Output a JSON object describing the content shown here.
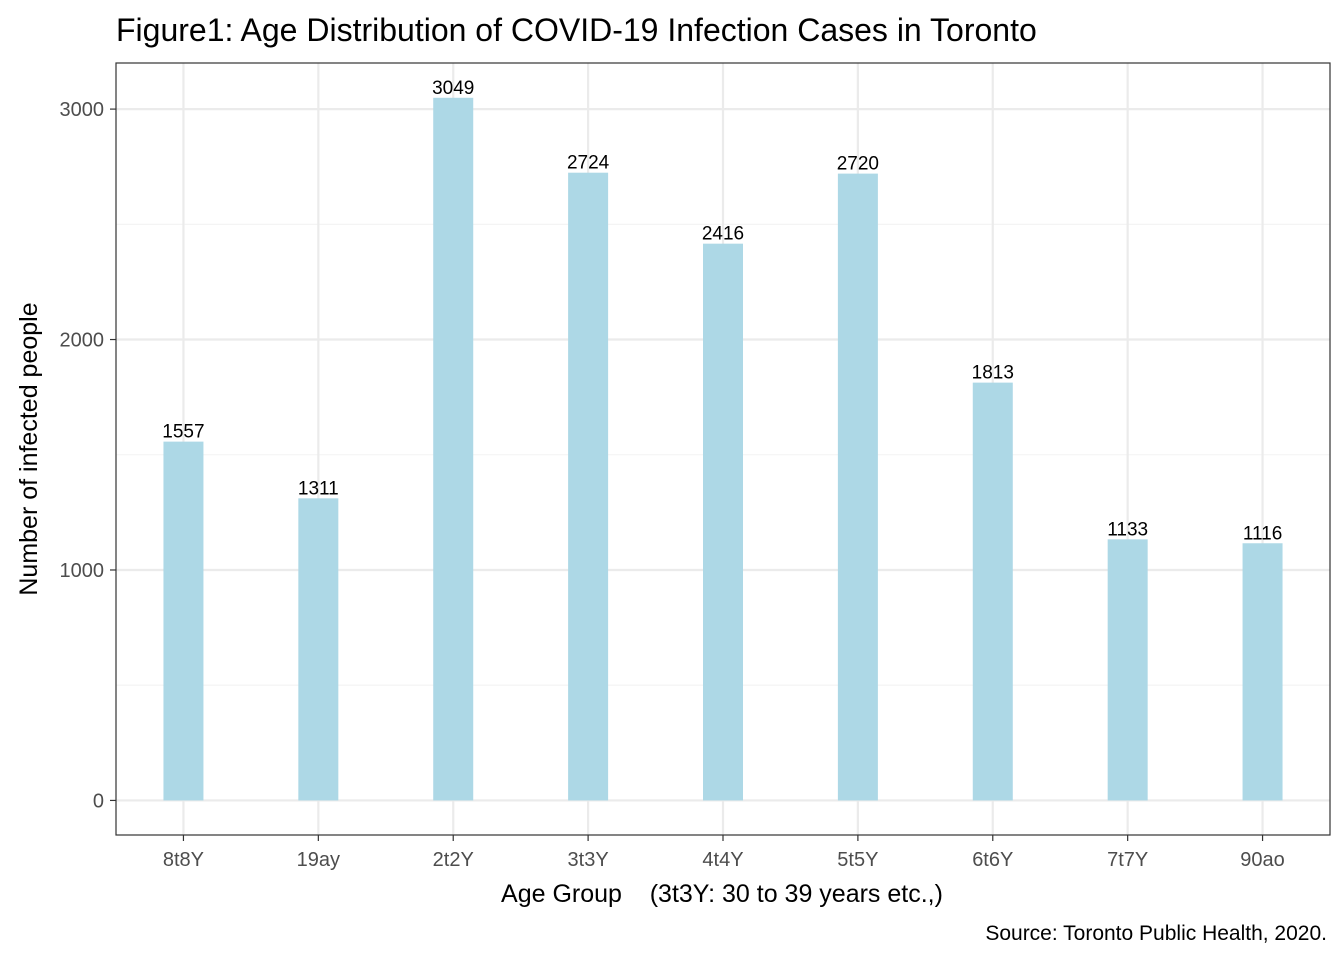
{
  "chart_data": {
    "type": "bar",
    "title": "Figure1: Age Distribution of COVID-19 Infection Cases in Toronto",
    "xlabel": "Age Group    (3t3Y: 30 to 39 years etc.,)",
    "ylabel": "Number of infected people",
    "caption": "Source: Toronto Public Health, 2020.",
    "categories": [
      "8t8Y",
      "19ay",
      "2t2Y",
      "3t3Y",
      "4t4Y",
      "5t5Y",
      "6t6Y",
      "7t7Y",
      "90ao"
    ],
    "values": [
      1557,
      1311,
      3049,
      2724,
      2416,
      2720,
      1813,
      1133,
      1116
    ],
    "data_labels": [
      "1557",
      "1311",
      "3049",
      "2724",
      "2416",
      "2720",
      "1813",
      "1133",
      "1116"
    ],
    "ylim": [
      -150,
      3200
    ],
    "yticks": [
      0,
      1000,
      2000,
      3000
    ],
    "ytick_labels": [
      "0",
      "1000",
      "2000",
      "3000"
    ],
    "grid": true,
    "legend": "none",
    "colors": {
      "bar": "#add8e6",
      "panel_border": "#333333",
      "grid_major": "#ebebeb",
      "grid_minor": "#f3f3f3"
    }
  }
}
